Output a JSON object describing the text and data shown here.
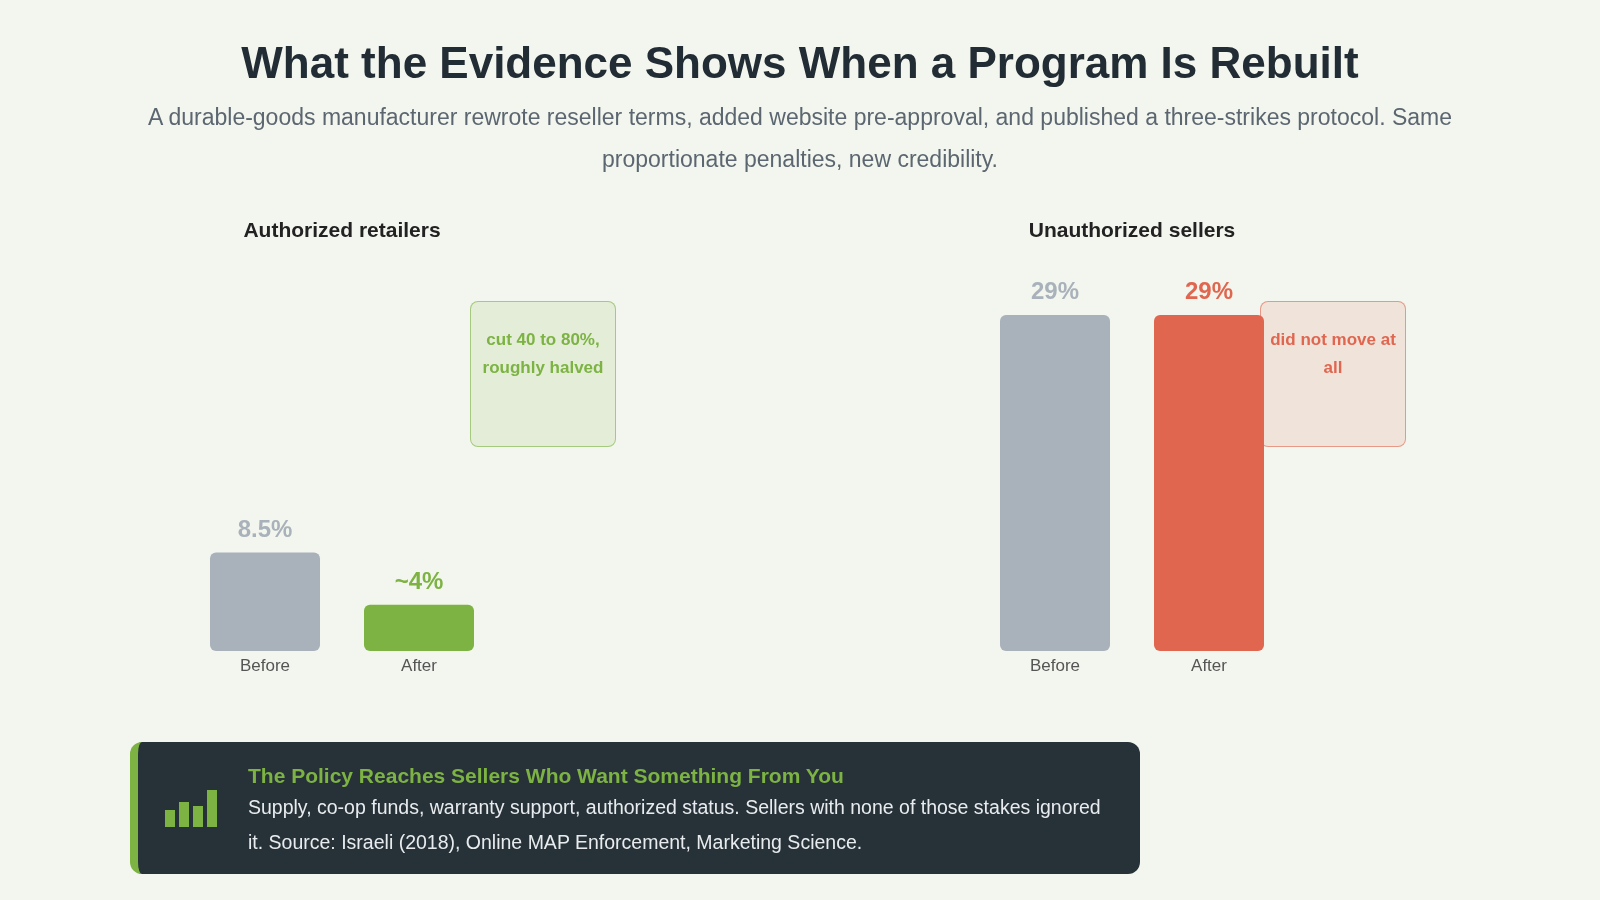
{
  "chart_data": [
    {
      "type": "other",
      "title": "What the Evidence Shows When a Program Is Rebuilt",
      "subtitle": "A durable-goods manufacturer rewrote reseller terms, added website pre-approval, and published a three-strikes protocol. Same proportionate penalties, new credibility."
    },
    {
      "type": "bar",
      "title": "Authorized retailers",
      "categories": [
        "Before",
        "After"
      ],
      "values": [
        8.5,
        4
      ],
      "colors": [
        "#a9b2bb",
        "#7cb342"
      ],
      "value_labels": [
        "8.5%",
        "~4%"
      ],
      "annotations": [
        "cut 40 to 80%, roughly halved"
      ]
    },
    {
      "type": "bar",
      "title": "Unauthorized sellers",
      "categories": [
        "Before",
        "After"
      ],
      "values": [
        29,
        29
      ],
      "colors": [
        "#a9b2bb",
        "#e06650"
      ],
      "value_labels": [
        "29%",
        "29%"
      ],
      "annotations": [
        "did not move at all"
      ]
    },
    {
      "type": "other",
      "title": "The Policy Reaches Sellers Who Want Something From You",
      "annotations": [
        "Supply, co-op funds, warranty support, authorized status. Sellers with none of those stakes ignored it. Source: Israeli (2018), Online MAP Enforcement, Marketing Science."
      ]
    }
  ]
}
